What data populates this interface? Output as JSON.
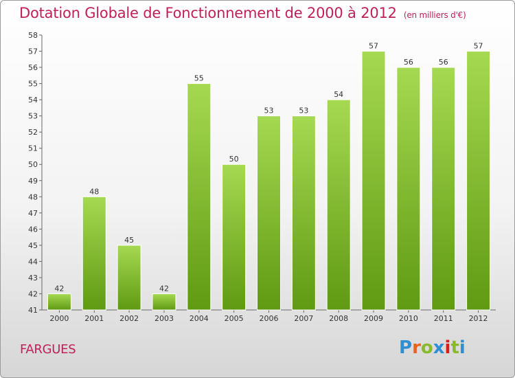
{
  "header": {
    "title": "Dotation Globale de Fonctionnement de 2000 à 2012",
    "subtitle": "(en milliers d'€)"
  },
  "footer": {
    "commune": "FARGUES",
    "logo_text": "Proxiti",
    "logo_colors": [
      "#2f8fd0",
      "#e8641e",
      "#8ab92c",
      "#2f8fd0",
      "#d8201a",
      "#8ab92c",
      "#2f8fd0"
    ]
  },
  "colors": {
    "bar_light": "#a6d952",
    "bar_dark": "#5f9a12",
    "title": "#c0205a"
  },
  "chart_data": {
    "type": "bar",
    "categories": [
      "2000",
      "2001",
      "2002",
      "2003",
      "2004",
      "2005",
      "2006",
      "2007",
      "2008",
      "2009",
      "2010",
      "2011",
      "2012"
    ],
    "values": [
      42,
      48,
      45,
      42,
      55,
      50,
      53,
      53,
      54,
      57,
      56,
      56,
      57
    ],
    "title": "Dotation Globale de Fonctionnement de 2000 à 2012",
    "subtitle": "(en milliers d'€)",
    "xlabel": "",
    "ylabel": "",
    "ylim": [
      41,
      58
    ],
    "yticks": [
      41,
      42,
      43,
      44,
      45,
      46,
      47,
      48,
      49,
      50,
      51,
      52,
      53,
      54,
      55,
      56,
      57,
      58
    ],
    "grid": false,
    "legend": "none"
  }
}
